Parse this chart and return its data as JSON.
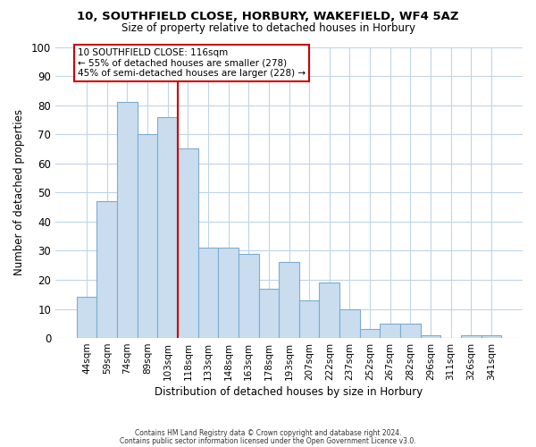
{
  "title1": "10, SOUTHFIELD CLOSE, HORBURY, WAKEFIELD, WF4 5AZ",
  "title2": "Size of property relative to detached houses in Horbury",
  "xlabel": "Distribution of detached houses by size in Horbury",
  "ylabel": "Number of detached properties",
  "footer1": "Contains HM Land Registry data © Crown copyright and database right 2024.",
  "footer2": "Contains public sector information licensed under the Open Government Licence v3.0.",
  "bar_labels": [
    "44sqm",
    "59sqm",
    "74sqm",
    "89sqm",
    "103sqm",
    "118sqm",
    "133sqm",
    "148sqm",
    "163sqm",
    "178sqm",
    "193sqm",
    "207sqm",
    "222sqm",
    "237sqm",
    "252sqm",
    "267sqm",
    "282sqm",
    "296sqm",
    "311sqm",
    "326sqm",
    "341sqm"
  ],
  "bar_values": [
    14,
    47,
    81,
    70,
    76,
    65,
    31,
    31,
    29,
    17,
    26,
    13,
    19,
    10,
    3,
    5,
    5,
    1,
    0,
    1,
    1
  ],
  "bar_color": "#c9ddef",
  "bar_edge_color": "#7badd1",
  "vline_x_index": 5,
  "vline_color": "#cc0000",
  "annotation_title": "10 SOUTHFIELD CLOSE: 116sqm",
  "annotation_line1": "← 55% of detached houses are smaller (278)",
  "annotation_line2": "45% of semi-detached houses are larger (228) →",
  "annotation_box_color": "#ffffff",
  "annotation_box_edge": "#cc0000",
  "ylim": [
    0,
    100
  ],
  "yticks": [
    0,
    10,
    20,
    30,
    40,
    50,
    60,
    70,
    80,
    90,
    100
  ],
  "background_color": "#ffffff",
  "grid_color": "#c0d4e8"
}
